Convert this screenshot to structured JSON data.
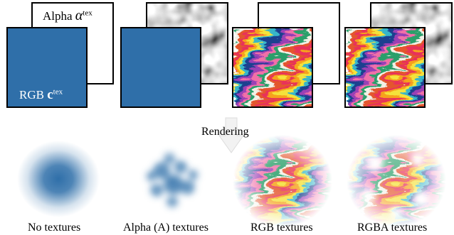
{
  "labels": {
    "alpha_word": "Alpha",
    "alpha_symbol": "α",
    "alpha_sup": "tex",
    "rgb_word": "RGB",
    "rgb_symbol": "c",
    "rgb_sup": "tex",
    "rendering": "Rendering"
  },
  "captions": [
    "No textures",
    "Alpha (A) textures",
    "RGB textures",
    "RGBA textures"
  ],
  "colors": {
    "blue": "#2f6fa9",
    "background": "#ffffff",
    "border": "#000000"
  }
}
